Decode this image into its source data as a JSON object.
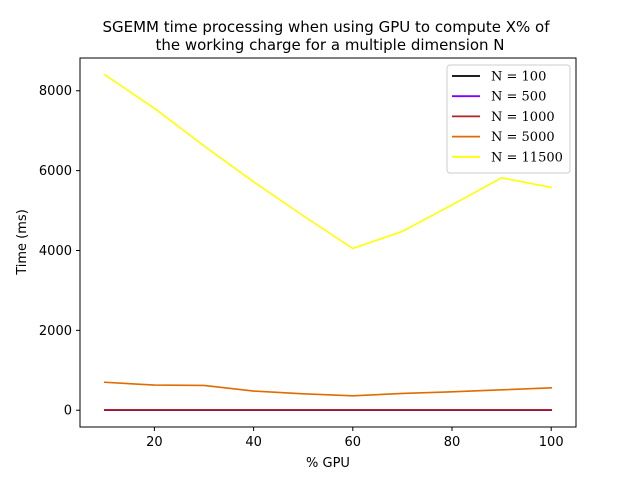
{
  "chart_data": {
    "type": "line",
    "title": [
      "SGEMM time processing when using GPU to compute X% of",
      "the working charge for a multiple dimension N"
    ],
    "xlabel": "% GPU",
    "ylabel": "Time (ms)",
    "xlim": [
      5,
      105
    ],
    "ylim": [
      -420,
      8820
    ],
    "xticks": [
      20,
      40,
      60,
      80,
      100
    ],
    "yticks": [
      0,
      2000,
      4000,
      6000,
      8000
    ],
    "grid": false,
    "legend_position": "top-right",
    "x": [
      10,
      20,
      30,
      40,
      50,
      60,
      70,
      80,
      90,
      100
    ],
    "series": [
      {
        "name": "N = 100",
        "color": "#000000",
        "values": [
          1,
          1,
          1,
          1,
          1,
          1,
          1,
          1,
          1,
          1
        ]
      },
      {
        "name": "N = 500",
        "color": "#8000ff",
        "values": [
          3,
          3,
          3,
          3,
          3,
          3,
          3,
          3,
          3,
          3
        ]
      },
      {
        "name": "N = 1000",
        "color": "#b22222",
        "values": [
          10,
          10,
          10,
          10,
          10,
          10,
          10,
          10,
          10,
          10
        ]
      },
      {
        "name": "N = 5000",
        "color": "#e06c00",
        "values": [
          700,
          630,
          620,
          480,
          410,
          360,
          420,
          460,
          510,
          560
        ]
      },
      {
        "name": "N = 11500",
        "color": "#ffff00",
        "values": [
          8400,
          7560,
          6620,
          5720,
          4870,
          4050,
          4480,
          5140,
          5820,
          5580
        ]
      }
    ]
  }
}
